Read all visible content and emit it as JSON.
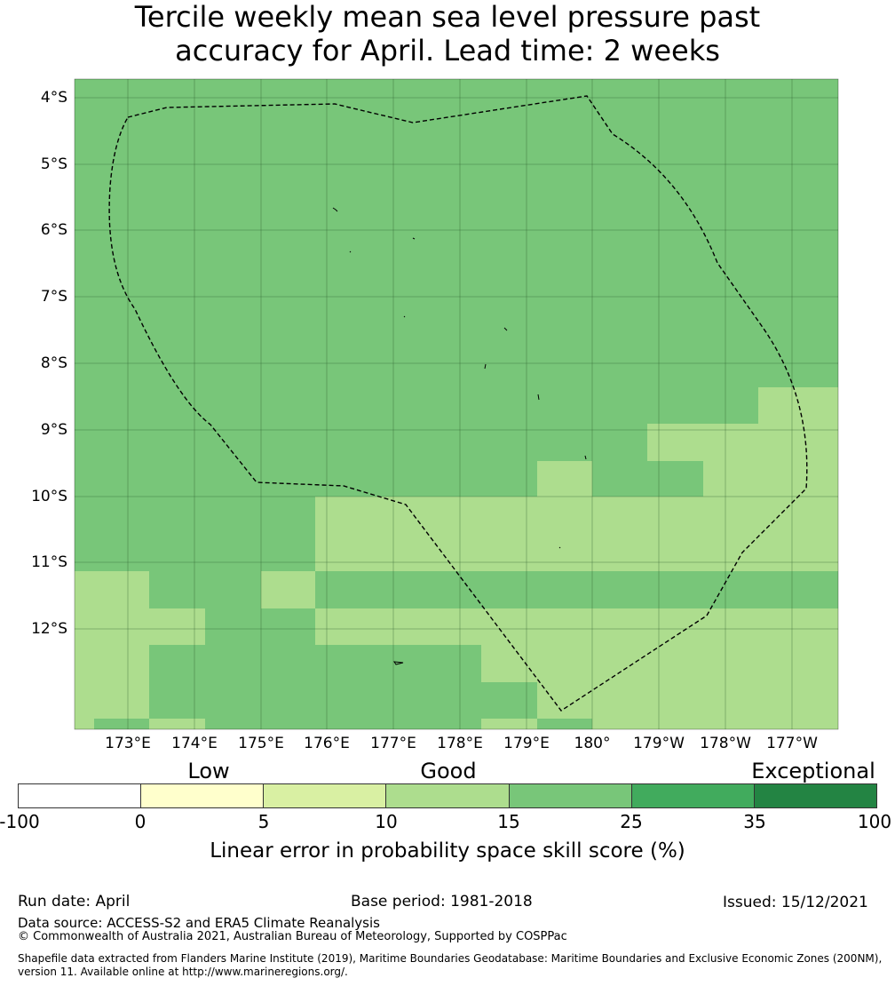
{
  "title": {
    "line1": "Tercile weekly mean sea level pressure past",
    "line2": "accuracy for April. Lead time: 2 weeks"
  },
  "map": {
    "lat_labels": [
      "4°S",
      "5°S",
      "6°S",
      "7°S",
      "8°S",
      "9°S",
      "10°S",
      "11°S",
      "12°S"
    ],
    "lon_labels": [
      "173°E",
      "174°E",
      "175°E",
      "176°E",
      "177°E",
      "178°E",
      "179°E",
      "180°",
      "179°W",
      "178°W",
      "177°W"
    ],
    "fill_colors": {
      "band_15_25": "#78c679",
      "band_10_15": "#addd8e"
    },
    "boundary_style": "dashed black line (EEZ)",
    "gridlines": true
  },
  "colorbar": {
    "categories": [
      "Low",
      "Good",
      "Exceptional"
    ],
    "ticks": [
      "-100",
      "0",
      "5",
      "10",
      "15",
      "25",
      "35",
      "100"
    ],
    "colors": [
      "#ffffff",
      "#ffffcc",
      "#d9f0a3",
      "#addd8e",
      "#78c679",
      "#41ab5d",
      "#238443"
    ],
    "label": "Linear error in probability space skill score (%)"
  },
  "footer": {
    "run_date": "Run date: April",
    "base_period": "Base period: 1981-2018",
    "issued": "Issued: 15/12/2021",
    "data_source": "Data source: ACCESS-S2 and ERA5 Climate Reanalysis",
    "copyright": "© Commonwealth of Australia 2021, Australian Bureau of Meteorology, Supported by COSPPac",
    "shapefile_line1": "Shapefile data extracted from Flanders Marine Institute (2019), Maritime Boundaries Geodatabase: Maritime Boundaries and Exclusive Economic Zones (200NM),",
    "shapefile_line2": "version 11. Available online at http://www.marineregions.org/."
  }
}
